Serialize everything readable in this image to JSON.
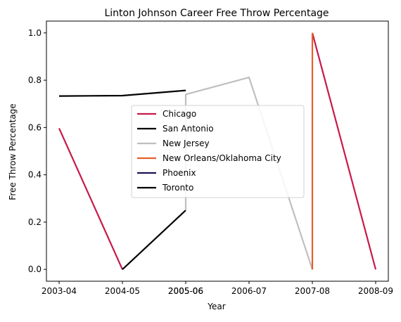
{
  "chart_data": {
    "type": "line",
    "title": "Linton Johnson Career Free Throw Percentage",
    "xlabel": "Year",
    "ylabel": "Free Throw Percentage",
    "xlim": [
      -0.15,
      5.3
    ],
    "ylim": [
      -0.05,
      1.05
    ],
    "x_ticks": [
      {
        "pos": 0,
        "label": "2003-04"
      },
      {
        "pos": 1,
        "label": "2004-05"
      },
      {
        "pos": 2,
        "label": "2005-06"
      },
      {
        "pos": 3,
        "label": "2005-06"
      },
      {
        "pos": 4,
        "label": "2006-07"
      },
      {
        "pos": 5,
        "label": "2007-08"
      },
      {
        "pos": 6,
        "label": "2008-09"
      }
    ],
    "y_ticks": [
      0.0,
      0.2,
      0.4,
      0.6,
      0.8,
      1.0
    ],
    "y_tick_labels": [
      "0.0",
      "0.2",
      "0.4",
      "0.6",
      "0.8",
      "1.0"
    ],
    "grid": false,
    "legend_position": "center",
    "series": [
      {
        "name": "Chicago",
        "color": "#c8194a",
        "points": [
          [
            0,
            0.597
          ],
          [
            1,
            0.0
          ],
          [
            null,
            null
          ],
          [
            4.0,
            1.0
          ],
          [
            5.0,
            0.0
          ]
        ]
      },
      {
        "name": "San Antonio",
        "color": "#000000",
        "points": [
          [
            1,
            0.0
          ],
          [
            2,
            0.25
          ]
        ]
      },
      {
        "name": "New Jersey",
        "color": "#bfbfbf",
        "points": [
          [
            2,
            0.25
          ],
          [
            2,
            0.74
          ],
          [
            3,
            0.812
          ],
          [
            4,
            0.0
          ]
        ]
      },
      {
        "name": "New Orleans/Oklahoma City",
        "color": "#e4602c",
        "points": [
          [
            4,
            0.0
          ],
          [
            4,
            1.0
          ]
        ]
      },
      {
        "name": "Phoenix",
        "color": "#1d1456",
        "points": []
      },
      {
        "name": "Toronto",
        "color": "#000000",
        "points": [
          [
            0,
            0.733
          ],
          [
            1,
            0.735
          ],
          [
            2,
            0.757
          ]
        ]
      }
    ]
  }
}
